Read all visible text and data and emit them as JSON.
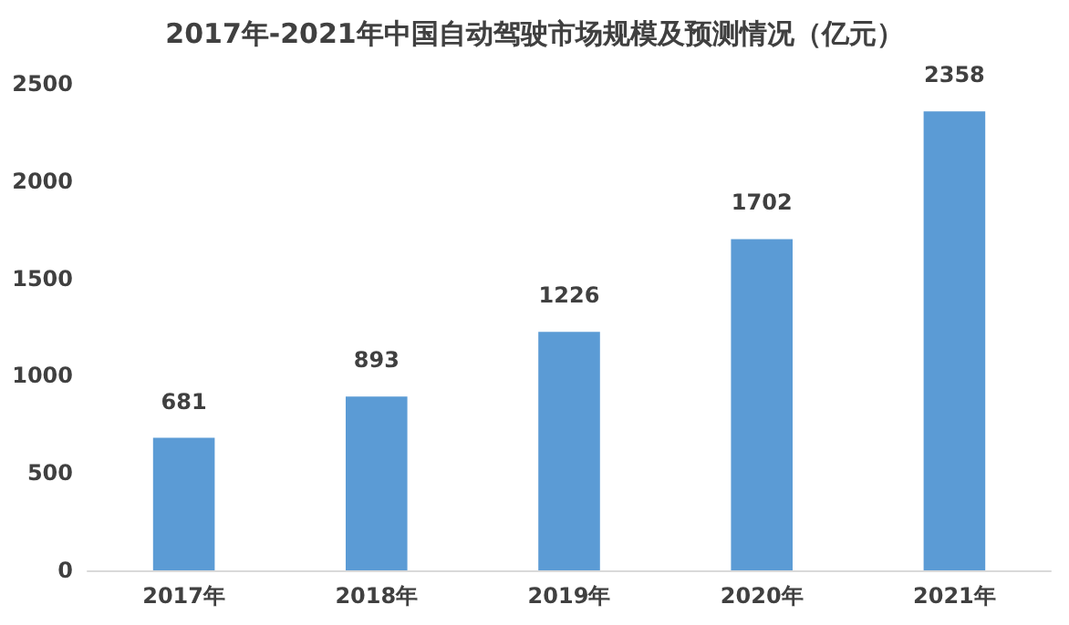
{
  "chart_data": {
    "type": "bar",
    "title": "2017年-2021年中国自动驾驶市场规模及预测情况（亿元）",
    "categories": [
      "2017年",
      "2018年",
      "2019年",
      "2020年",
      "2021年"
    ],
    "values": [
      681,
      893,
      1226,
      1702,
      2358
    ],
    "color": "#5b9bd5",
    "ylim": [
      0,
      2500
    ],
    "yticks": [
      0,
      500,
      1000,
      1500,
      2000,
      2500
    ],
    "grid": false,
    "data_labels": true
  }
}
